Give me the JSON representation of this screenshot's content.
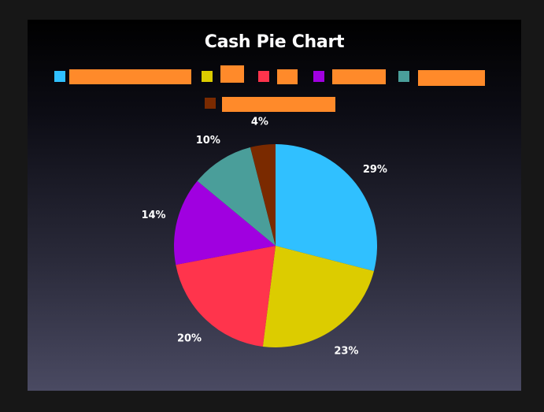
{
  "colors": {
    "redaction": "#ff8a2a",
    "label_text": "#ffffff"
  },
  "chart_data": {
    "type": "pie",
    "title": "Cash Pie Chart",
    "start_angle_deg": 0,
    "direction": "clockwise",
    "legend_position": "top",
    "legend_labels_redacted": true,
    "slices": [
      {
        "name": "",
        "value": 29,
        "label": "29%",
        "color": "#30c0ff"
      },
      {
        "name": "",
        "value": 23,
        "label": "23%",
        "color": "#dccc00"
      },
      {
        "name": "",
        "value": 20,
        "label": "20%",
        "color": "#ff344c"
      },
      {
        "name": "",
        "value": 14,
        "label": "14%",
        "color": "#a000e0"
      },
      {
        "name": "",
        "value": 10,
        "label": "10%",
        "color": "#4a9e9a"
      },
      {
        "name": "",
        "value": 4,
        "label": "4%",
        "color": "#7a2a00"
      }
    ]
  }
}
